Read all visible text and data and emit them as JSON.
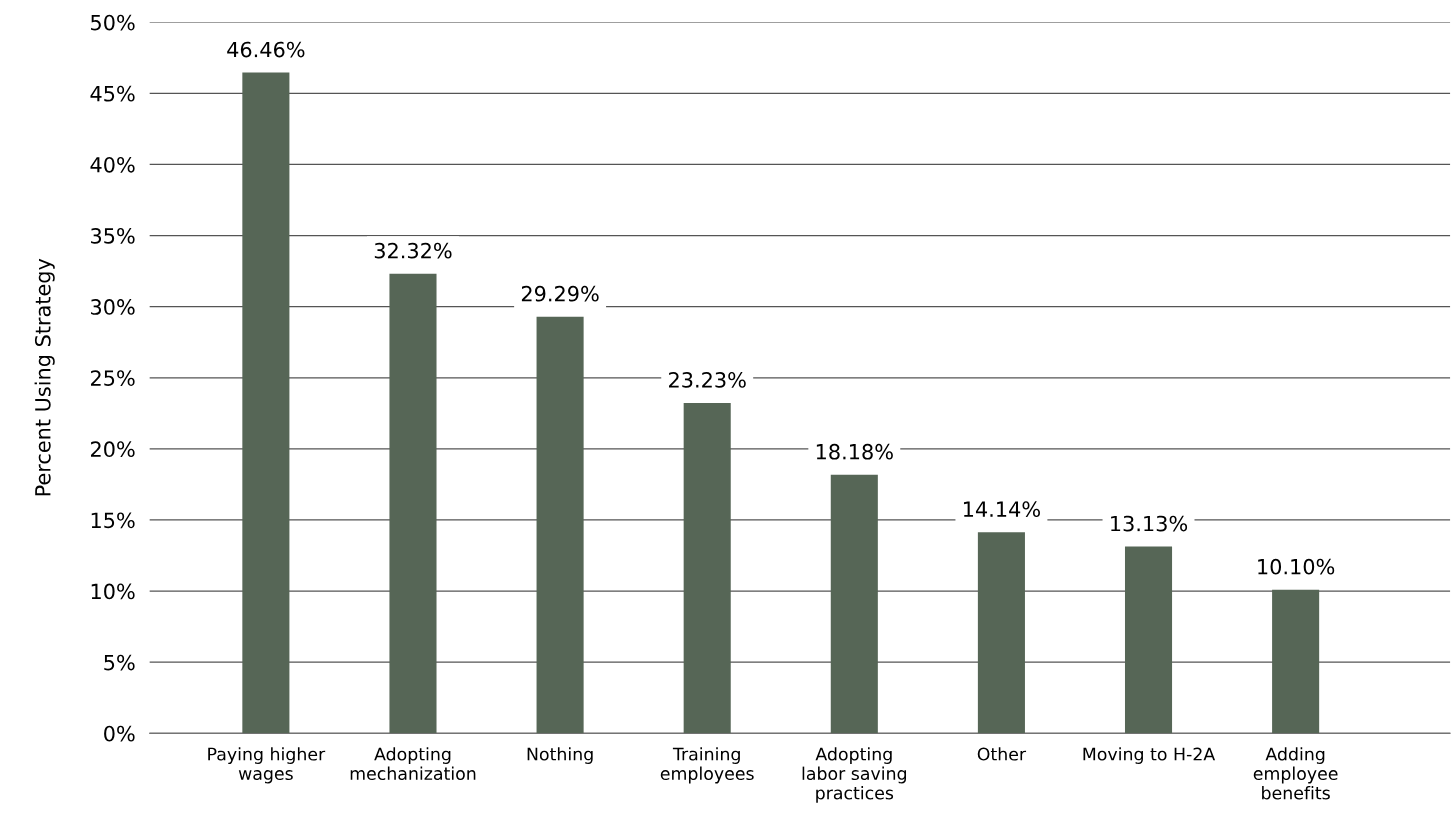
{
  "chart_data": {
    "type": "bar",
    "ylabel": "Percent Using Strategy",
    "categories": [
      "Paying higher\nwages",
      "Adopting\nmechanization",
      "Nothing",
      "Training\nemployees",
      "Adopting\nlabor saving\npractices",
      "Other",
      "Moving to H-2A",
      "Adding\nemployee\nbenefits"
    ],
    "values": [
      46.46,
      32.32,
      29.29,
      23.23,
      18.18,
      14.14,
      13.13,
      10.1
    ],
    "value_labels": [
      "46.46%",
      "32.32%",
      "29.29%",
      "23.23%",
      "18.18%",
      "14.14%",
      "13.13%",
      "10.10%"
    ],
    "color": "#566656",
    "ylim": [
      0,
      50
    ],
    "yticks": [
      {
        "value": 0,
        "label": "0%"
      },
      {
        "value": 5,
        "label": "5%"
      },
      {
        "value": 10,
        "label": "10%"
      },
      {
        "value": 15,
        "label": "15%"
      },
      {
        "value": 20,
        "label": "20%"
      },
      {
        "value": 25,
        "label": "25%"
      },
      {
        "value": 30,
        "label": "30%"
      },
      {
        "value": 35,
        "label": "35%"
      },
      {
        "value": 40,
        "label": "40%"
      },
      {
        "value": 45,
        "label": "45%"
      },
      {
        "value": 50,
        "label": "50%"
      }
    ],
    "grid": "y"
  }
}
